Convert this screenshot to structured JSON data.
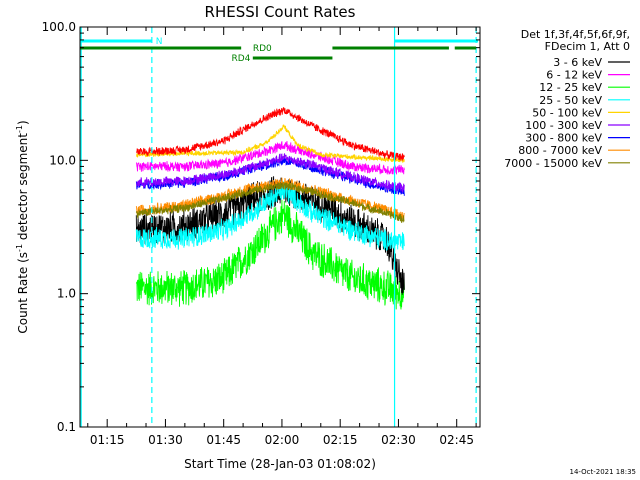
{
  "chart_data": {
    "type": "line",
    "title": "RHESSI Count Rates",
    "xlabel": "Start Time (28-Jan-03 01:08:02)",
    "ylabel_main": "Count Rate (s",
    "ylabel_sup1": "-1",
    "ylabel_mid": " detector segment",
    "ylabel_sup2": "-1",
    "ylabel_end": ")",
    "yscale": "log",
    "ylim": [
      0.1,
      100.0
    ],
    "xlim_minutes": [
      68.0,
      171.0
    ],
    "x_ticks": [
      {
        "minute": 75,
        "label": "01:15"
      },
      {
        "minute": 90,
        "label": "01:30"
      },
      {
        "minute": 105,
        "label": "01:45"
      },
      {
        "minute": 120,
        "label": "02:00"
      },
      {
        "minute": 135,
        "label": "02:15"
      },
      {
        "minute": 150,
        "label": "02:30"
      },
      {
        "minute": 165,
        "label": "02:45"
      }
    ],
    "y_ticks": [
      {
        "value": 0.1,
        "label": "0.1"
      },
      {
        "value": 1.0,
        "label": "1.0"
      },
      {
        "value": 10.0,
        "label": "10.0"
      },
      {
        "value": 100.0,
        "label": "100.0"
      }
    ],
    "data_range_minutes": [
      82.5,
      151.5
    ],
    "peak_minute": 120.5,
    "legend_header": [
      "Det 1f,3f,4f,5f,6f,9f,",
      "FDecim 1, Att 0"
    ],
    "series": [
      {
        "name": "3 - 6 keV",
        "color": "#000000",
        "base": 3.0,
        "peak": 6.0,
        "noise": 0.2,
        "trend": [
          [
            82.5,
            3.0
          ],
          [
            95,
            3.2
          ],
          [
            105,
            4.0
          ],
          [
            113,
            5.2
          ],
          [
            120.5,
            6.0
          ],
          [
            128,
            5.0
          ],
          [
            138,
            3.5
          ],
          [
            147,
            2.5
          ],
          [
            150.5,
            1.3
          ],
          [
            151.5,
            1.1
          ]
        ]
      },
      {
        "name": "6 - 12 keV",
        "color": "#ff00ff",
        "base": 9.0,
        "peak": 13.0,
        "noise": 0.06,
        "trend": [
          [
            82.5,
            9.0
          ],
          [
            95,
            9.0
          ],
          [
            105,
            9.5
          ],
          [
            113,
            11.0
          ],
          [
            120.5,
            13.0
          ],
          [
            128,
            11.0
          ],
          [
            138,
            9.0
          ],
          [
            147,
            8.5
          ],
          [
            151.5,
            8.5
          ]
        ]
      },
      {
        "name": "12 - 25 keV",
        "color": "#00ff00",
        "base": 1.1,
        "peak": 4.0,
        "noise": 0.22,
        "trend": [
          [
            82.5,
            1.1
          ],
          [
            95,
            1.1
          ],
          [
            105,
            1.3
          ],
          [
            113,
            2.2
          ],
          [
            120.5,
            4.0
          ],
          [
            128,
            2.0
          ],
          [
            138,
            1.3
          ],
          [
            147,
            1.1
          ],
          [
            151.5,
            1.0
          ]
        ]
      },
      {
        "name": "25 - 50 keV",
        "color": "#00ffff",
        "base": 2.6,
        "peak": 6.0,
        "noise": 0.13,
        "trend": [
          [
            82.5,
            2.6
          ],
          [
            95,
            2.6
          ],
          [
            105,
            3.0
          ],
          [
            113,
            4.2
          ],
          [
            120.5,
            6.0
          ],
          [
            128,
            4.0
          ],
          [
            138,
            3.0
          ],
          [
            147,
            2.5
          ],
          [
            151.5,
            2.4
          ]
        ]
      },
      {
        "name": "50 - 100 keV",
        "color": "#ffd400",
        "base": 12.0,
        "peak": 18.0,
        "noise": 0.03,
        "trend": [
          [
            82.5,
            11.0
          ],
          [
            110,
            11.5
          ],
          [
            116,
            13.5
          ],
          [
            120.5,
            18.0
          ],
          [
            124,
            13.0
          ],
          [
            130,
            11.0
          ],
          [
            151.5,
            10.0
          ]
        ]
      },
      {
        "name": "100 - 300 keV",
        "color": "#8a00ff",
        "base": 7.0,
        "peak": 10.5,
        "noise": 0.06,
        "trend": [
          [
            82.5,
            6.8
          ],
          [
            95,
            7.0
          ],
          [
            105,
            7.8
          ],
          [
            113,
            9.0
          ],
          [
            120.5,
            10.5
          ],
          [
            128,
            9.2
          ],
          [
            138,
            7.5
          ],
          [
            147,
            6.5
          ],
          [
            151.5,
            6.2
          ]
        ]
      },
      {
        "name": "300 - 800 keV",
        "color": "#0000ff",
        "base": 6.8,
        "peak": 10.0,
        "noise": 0.06,
        "trend": [
          [
            82.5,
            6.5
          ],
          [
            95,
            6.8
          ],
          [
            105,
            7.6
          ],
          [
            113,
            8.8
          ],
          [
            120.5,
            10.0
          ],
          [
            128,
            8.8
          ],
          [
            138,
            7.2
          ],
          [
            147,
            6.2
          ],
          [
            151.5,
            5.8
          ]
        ]
      },
      {
        "name": "800 - 7000 keV",
        "color": "#ff8c00",
        "base": 4.2,
        "peak": 6.8,
        "noise": 0.07,
        "trend": [
          [
            82.5,
            4.2
          ],
          [
            95,
            4.6
          ],
          [
            105,
            5.4
          ],
          [
            113,
            6.3
          ],
          [
            120.5,
            6.8
          ],
          [
            128,
            6.0
          ],
          [
            138,
            5.0
          ],
          [
            147,
            4.2
          ],
          [
            151.5,
            3.8
          ]
        ]
      },
      {
        "name": "7000 - 15000 keV",
        "color": "#808000",
        "base": 4.0,
        "peak": 6.5,
        "noise": 0.05,
        "trend": [
          [
            82.5,
            4.0
          ],
          [
            95,
            4.4
          ],
          [
            105,
            5.2
          ],
          [
            113,
            6.0
          ],
          [
            120.5,
            6.5
          ],
          [
            128,
            5.8
          ],
          [
            138,
            4.8
          ],
          [
            147,
            4.0
          ],
          [
            151.5,
            3.6
          ]
        ]
      },
      {
        "name": "flare",
        "color": "#ff0000",
        "base": 11.5,
        "peak": 24.0,
        "noise": 0.05,
        "in_legend": false,
        "trend": [
          [
            82.5,
            11.5
          ],
          [
            95,
            12.0
          ],
          [
            105,
            14.0
          ],
          [
            113,
            19.0
          ],
          [
            120.5,
            24.0
          ],
          [
            128,
            18.0
          ],
          [
            138,
            13.0
          ],
          [
            147,
            11.0
          ],
          [
            151.5,
            10.5
          ]
        ]
      }
    ],
    "vertical_lines": [
      {
        "minute": 68.3,
        "style": "solid",
        "color": "#00ffff"
      },
      {
        "minute": 86.5,
        "style": "dashed",
        "color": "#00ffff"
      },
      {
        "minute": 149.0,
        "style": "solid",
        "color": "#00ffff"
      },
      {
        "minute": 170.0,
        "style": "dashed",
        "color": "#00ffff"
      }
    ],
    "status_bars": [
      {
        "label": "N",
        "color": "#00ffff",
        "level": 1,
        "segments": [
          [
            68.0,
            86.5
          ],
          [
            149.0,
            170.5
          ]
        ],
        "label_minute": 87.5
      },
      {
        "label": "RD0",
        "color": "#008000",
        "level": 2,
        "segments": [
          [
            68.0,
            109.5
          ],
          [
            133.0,
            163.0
          ],
          [
            164.5,
            170.0
          ]
        ],
        "label_minute": 112.5
      },
      {
        "label": "RD4",
        "color": "#008000",
        "level": 3,
        "segments": [
          [
            112.5,
            133.0
          ]
        ],
        "label_minute": 107.0
      }
    ],
    "timestamp": "14-Oct-2021 18:35"
  }
}
